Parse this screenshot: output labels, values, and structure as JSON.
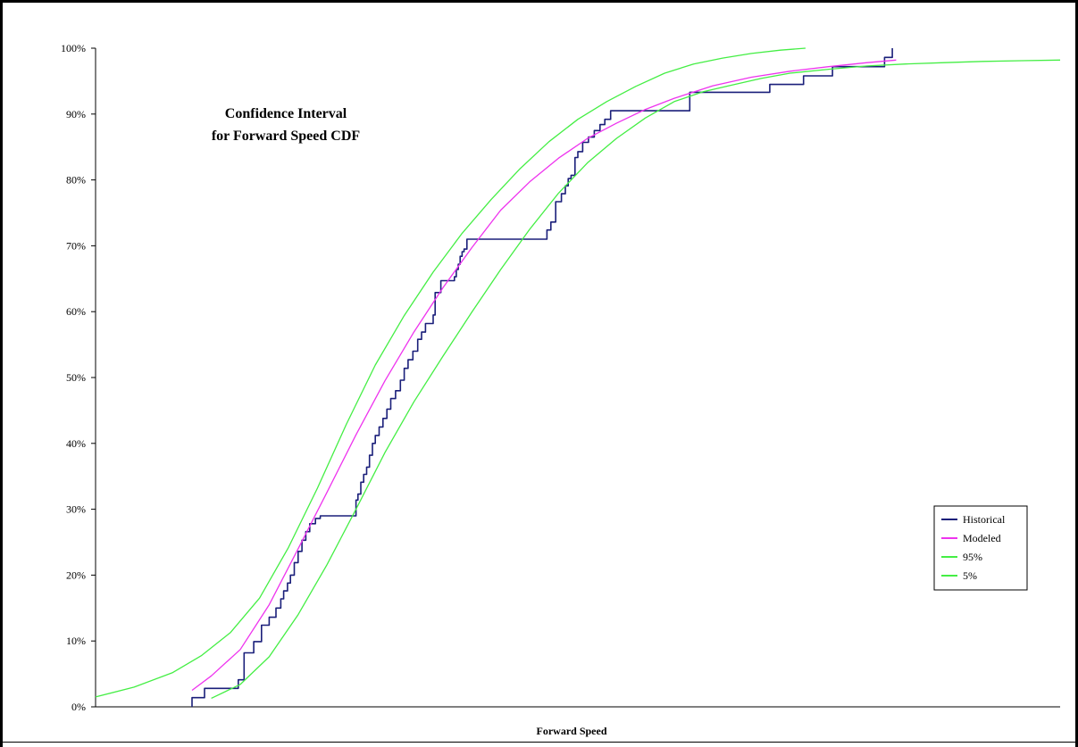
{
  "chart_data": {
    "type": "line",
    "title": [
      "Confidence Interval",
      "for Forward Speed CDF"
    ],
    "xlabel": "Forward Speed",
    "ylabel": "",
    "xlim": [
      0,
      1
    ],
    "ylim": [
      0,
      100
    ],
    "y_ticks": [
      "0%",
      "10%",
      "20%",
      "30%",
      "40%",
      "50%",
      "60%",
      "70%",
      "80%",
      "90%",
      "100%"
    ],
    "grid": false,
    "legend_position": "lower-right",
    "series": [
      {
        "name": "Historical",
        "color": "#1a1f7a",
        "style": "step",
        "x": [
          0.1,
          0.113,
          0.148,
          0.154,
          0.164,
          0.172,
          0.18,
          0.187,
          0.192,
          0.195,
          0.199,
          0.202,
          0.206,
          0.21,
          0.214,
          0.218,
          0.222,
          0.225,
          0.228,
          0.233,
          0.248,
          0.27,
          0.272,
          0.275,
          0.278,
          0.281,
          0.284,
          0.287,
          0.29,
          0.294,
          0.298,
          0.302,
          0.306,
          0.311,
          0.316,
          0.32,
          0.324,
          0.329,
          0.334,
          0.338,
          0.342,
          0.346,
          0.35,
          0.352,
          0.358,
          0.372,
          0.374,
          0.376,
          0.378,
          0.38,
          0.382,
          0.385,
          0.468,
          0.472,
          0.477,
          0.483,
          0.487,
          0.49,
          0.493,
          0.497,
          0.5,
          0.505,
          0.511,
          0.517,
          0.523,
          0.528,
          0.534,
          0.538,
          0.541,
          0.616,
          0.648,
          0.699,
          0.734,
          0.764,
          0.79,
          0.818,
          0.826
        ],
        "y": [
          1.4,
          2.8,
          4.1,
          8.2,
          9.9,
          12.4,
          13.6,
          15.0,
          16.4,
          17.6,
          18.8,
          20.0,
          21.9,
          23.6,
          25.3,
          26.6,
          27.8,
          27.8,
          28.6,
          29.0,
          29.0,
          31.4,
          32.3,
          34.1,
          35.3,
          36.4,
          38.2,
          40.0,
          41.2,
          42.5,
          43.8,
          45.2,
          46.8,
          48.0,
          49.6,
          51.4,
          52.7,
          54.0,
          55.8,
          56.9,
          58.2,
          58.2,
          59.5,
          62.9,
          64.7,
          65.3,
          66.4,
          67.2,
          68.4,
          69.1,
          69.5,
          71.0,
          72.4,
          73.6,
          76.7,
          77.9,
          79.1,
          80.2,
          80.7,
          83.4,
          84.3,
          85.7,
          86.5,
          87.5,
          88.4,
          89.2,
          90.5,
          90.5,
          90.5,
          93.3,
          93.3,
          94.5,
          95.8,
          97.2,
          97.2,
          98.6,
          100.0
        ]
      },
      {
        "name": "Modeled",
        "color": "#ee33ee",
        "style": "line",
        "x": [
          0.1,
          0.12,
          0.15,
          0.18,
          0.21,
          0.24,
          0.27,
          0.3,
          0.33,
          0.36,
          0.39,
          0.42,
          0.45,
          0.48,
          0.51,
          0.54,
          0.57,
          0.6,
          0.64,
          0.68,
          0.72,
          0.76,
          0.8,
          0.83
        ],
        "y": [
          2.5,
          4.7,
          8.7,
          15.5,
          24.0,
          32.6,
          41.3,
          49.5,
          56.9,
          63.6,
          69.7,
          75.4,
          79.7,
          83.3,
          86.3,
          88.6,
          90.7,
          92.4,
          94.3,
          95.6,
          96.5,
          97.2,
          97.8,
          98.2
        ]
      },
      {
        "name": "95%",
        "color": "#44ee44",
        "style": "line",
        "x": [
          0.0,
          0.04,
          0.08,
          0.11,
          0.14,
          0.17,
          0.2,
          0.23,
          0.26,
          0.29,
          0.32,
          0.35,
          0.38,
          0.41,
          0.44,
          0.47,
          0.5,
          0.53,
          0.56,
          0.59,
          0.62,
          0.65,
          0.68,
          0.71,
          0.736
        ],
        "y": [
          1.5,
          3.0,
          5.2,
          7.8,
          11.3,
          16.5,
          24.2,
          33.2,
          42.9,
          51.9,
          59.4,
          66.0,
          71.9,
          77.0,
          81.7,
          85.8,
          89.2,
          91.9,
          94.2,
          96.2,
          97.6,
          98.5,
          99.2,
          99.7,
          100.0
        ]
      },
      {
        "name": "5%",
        "color": "#44ee44",
        "style": "line",
        "x": [
          0.12,
          0.15,
          0.18,
          0.21,
          0.24,
          0.27,
          0.3,
          0.33,
          0.36,
          0.39,
          0.42,
          0.45,
          0.48,
          0.51,
          0.54,
          0.57,
          0.6,
          0.63,
          0.66,
          0.69,
          0.72,
          0.76,
          0.8,
          0.84,
          0.88,
          0.92,
          0.96,
          1.0
        ],
        "y": [
          1.3,
          3.4,
          7.6,
          14.0,
          21.6,
          30.0,
          38.6,
          46.3,
          53.2,
          59.9,
          66.4,
          72.5,
          78.0,
          82.6,
          86.3,
          89.4,
          91.9,
          93.4,
          94.4,
          95.4,
          96.2,
          96.8,
          97.3,
          97.6,
          97.8,
          98.0,
          98.1,
          98.2
        ]
      }
    ]
  }
}
